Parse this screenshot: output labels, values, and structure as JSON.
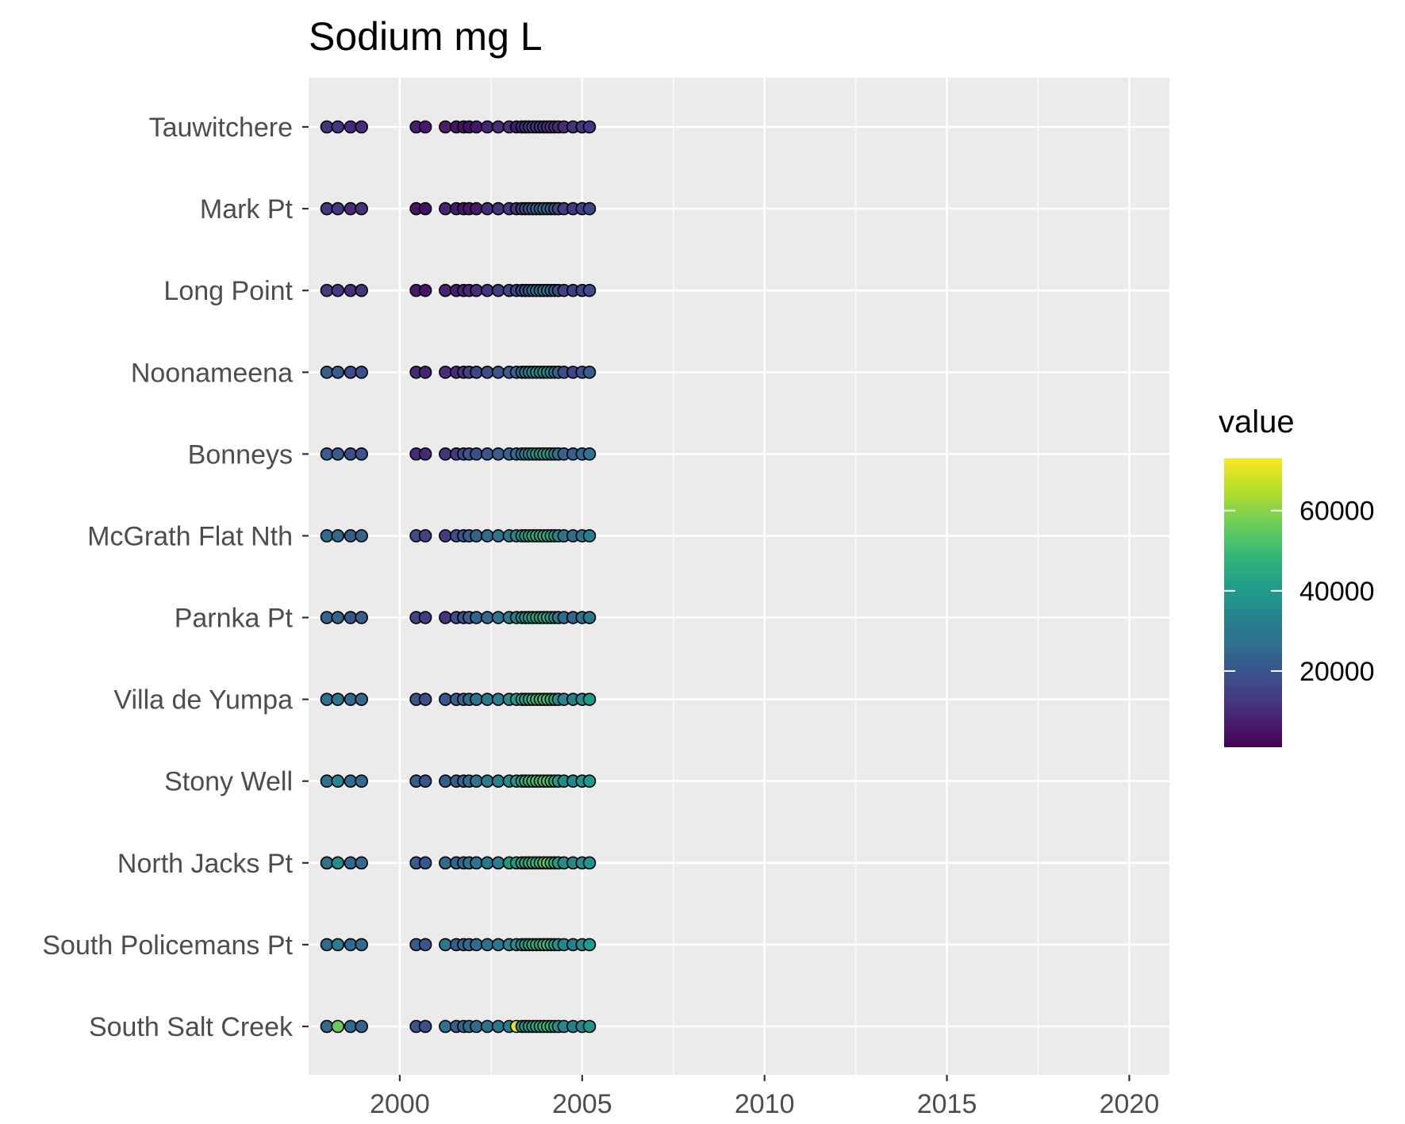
{
  "chart_data": {
    "type": "scatter",
    "title": "Sodium mg L",
    "xlabel": "",
    "ylabel": "",
    "xlim": [
      1997.5,
      2021.1
    ],
    "x_ticks": [
      2000,
      2005,
      2010,
      2015,
      2020
    ],
    "x_tick_labels": [
      "2000",
      "2005",
      "2010",
      "2015",
      "2020"
    ],
    "categories": [
      "Tauwitchere",
      "Mark Pt",
      "Long Point",
      "Noonameena",
      "Bonneys",
      "McGrath Flat Nth",
      "Parnka Pt",
      "Villa de Yumpa",
      "Stony Well",
      "North Jacks Pt",
      "South Policemans Pt",
      "South Salt Creek"
    ],
    "sample_dates": [
      1998.0,
      1998.3,
      1998.65,
      1998.95,
      2000.45,
      2000.7,
      2001.25,
      2001.55,
      2001.75,
      2001.9,
      2002.1,
      2002.4,
      2002.7,
      2003.0,
      2003.2,
      2003.35,
      2003.45,
      2003.55,
      2003.65,
      2003.75,
      2003.85,
      2003.95,
      2004.05,
      2004.15,
      2004.25,
      2004.35,
      2004.5,
      2004.75,
      2005.0,
      2005.2
    ],
    "values": [
      [
        12000,
        12000,
        9000,
        10000,
        7000,
        6000,
        7000,
        5000,
        4000,
        4000,
        5000,
        8000,
        10000,
        11000,
        6000,
        8000,
        10000,
        12000,
        14000,
        13000,
        12000,
        10000,
        12000,
        13000,
        11000,
        9000,
        10000,
        11000,
        12000,
        13000
      ],
      [
        13000,
        13000,
        9000,
        11000,
        5000,
        4000,
        8000,
        6000,
        5000,
        5000,
        6000,
        10000,
        12000,
        14000,
        12000,
        15000,
        17000,
        20000,
        22000,
        24000,
        22000,
        25000,
        26000,
        22000,
        20000,
        16000,
        14000,
        13000,
        15000,
        16000
      ],
      [
        14000,
        13000,
        10000,
        12000,
        6000,
        5000,
        8000,
        7000,
        8000,
        9000,
        10000,
        12000,
        14000,
        16000,
        14000,
        17000,
        20000,
        22000,
        24000,
        28000,
        26000,
        28000,
        30000,
        26000,
        24000,
        18000,
        15000,
        14000,
        16000,
        17000
      ],
      [
        22000,
        22000,
        17000,
        18000,
        9000,
        8000,
        10000,
        10000,
        12000,
        15000,
        16000,
        18000,
        20000,
        22000,
        24000,
        25000,
        30000,
        32000,
        34000,
        36000,
        34000,
        36000,
        37000,
        34000,
        30000,
        24000,
        18000,
        16000,
        20000,
        22000
      ],
      [
        22000,
        22000,
        18000,
        19000,
        10000,
        9000,
        12000,
        14000,
        16000,
        20000,
        18000,
        20000,
        22000,
        24000,
        26000,
        28000,
        32000,
        34000,
        37000,
        40000,
        38000,
        40000,
        42000,
        38000,
        34000,
        28000,
        24000,
        22000,
        26000,
        28000
      ],
      [
        26000,
        25000,
        22000,
        24000,
        18000,
        15000,
        14000,
        18000,
        20000,
        22000,
        24000,
        26000,
        28000,
        30000,
        34000,
        38000,
        40000,
        42000,
        44000,
        46000,
        44000,
        46000,
        48000,
        44000,
        40000,
        34000,
        28000,
        26000,
        30000,
        32000
      ],
      [
        24000,
        24000,
        20000,
        22000,
        16000,
        14000,
        12000,
        18000,
        20000,
        22000,
        24000,
        26000,
        28000,
        30000,
        32000,
        35000,
        38000,
        40000,
        42000,
        44000,
        42000,
        44000,
        46000,
        42000,
        38000,
        30000,
        26000,
        24000,
        28000,
        30000
      ],
      [
        28000,
        28000,
        25000,
        26000,
        20000,
        18000,
        20000,
        22000,
        24000,
        26000,
        28000,
        30000,
        32000,
        36000,
        40000,
        42000,
        44000,
        46000,
        48000,
        50000,
        48000,
        50000,
        52000,
        48000,
        44000,
        38000,
        34000,
        32000,
        36000,
        40000
      ],
      [
        28000,
        34000,
        26000,
        26000,
        22000,
        20000,
        22000,
        22000,
        24000,
        26000,
        28000,
        30000,
        32000,
        36000,
        38000,
        42000,
        46000,
        48000,
        50000,
        52000,
        50000,
        52000,
        54000,
        50000,
        46000,
        40000,
        36000,
        34000,
        38000,
        40000
      ],
      [
        28000,
        36000,
        26000,
        26000,
        22000,
        20000,
        26000,
        24000,
        26000,
        28000,
        28000,
        30000,
        32000,
        38000,
        40000,
        42000,
        44000,
        46000,
        48000,
        50000,
        48000,
        52000,
        56000,
        50000,
        46000,
        40000,
        36000,
        34000,
        36000,
        38000
      ],
      [
        26000,
        32000,
        26000,
        26000,
        22000,
        20000,
        30000,
        22000,
        24000,
        26000,
        26000,
        28000,
        30000,
        34000,
        36000,
        38000,
        40000,
        42000,
        44000,
        46000,
        44000,
        48000,
        52000,
        46000,
        42000,
        38000,
        34000,
        32000,
        36000,
        40000
      ],
      [
        26000,
        56000,
        26000,
        24000,
        20000,
        18000,
        28000,
        22000,
        24000,
        26000,
        26000,
        28000,
        30000,
        32000,
        70000,
        36000,
        38000,
        40000,
        42000,
        44000,
        46000,
        48000,
        50000,
        48000,
        44000,
        38000,
        34000,
        32000,
        34000,
        38000
      ]
    ],
    "legend": {
      "title": "value",
      "placement": "right",
      "min": 1000,
      "max": 73000,
      "ticks": [
        20000,
        40000,
        60000
      ],
      "tick_labels": [
        "20000",
        "40000",
        "60000"
      ],
      "colormap": "viridis"
    },
    "grid": true,
    "colors": {
      "panel_background": "#ebebeb",
      "gridline": "#ffffff",
      "point_stroke": "#000000",
      "viridis": [
        "#440154",
        "#482878",
        "#3e4a89",
        "#31688e",
        "#26828e",
        "#1f9e89",
        "#35b779",
        "#6ece58",
        "#b5de2b",
        "#fde725"
      ]
    }
  }
}
